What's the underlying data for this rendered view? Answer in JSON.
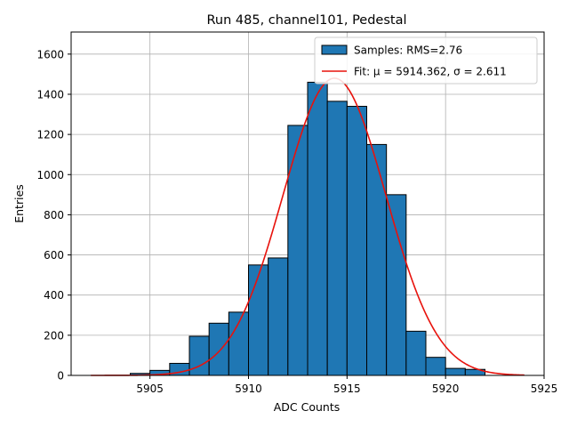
{
  "chart_data": {
    "type": "bar",
    "title": "Run 485, channel101, Pedestal",
    "xlabel": "ADC Counts",
    "ylabel": "Entries",
    "xlim": [
      5901,
      5925
    ],
    "ylim": [
      0,
      1710
    ],
    "xticks": [
      5905,
      5910,
      5915,
      5920,
      5925
    ],
    "yticks": [
      0,
      200,
      400,
      600,
      800,
      1000,
      1200,
      1400,
      1600
    ],
    "grid": true,
    "legend_position": "top-right",
    "bin_width": 1,
    "bins": [
      {
        "x": 5904,
        "value": 10
      },
      {
        "x": 5905,
        "value": 25
      },
      {
        "x": 5906,
        "value": 60
      },
      {
        "x": 5907,
        "value": 195
      },
      {
        "x": 5908,
        "value": 260
      },
      {
        "x": 5909,
        "value": 315
      },
      {
        "x": 5910,
        "value": 550
      },
      {
        "x": 5911,
        "value": 585
      },
      {
        "x": 5912,
        "value": 1245
      },
      {
        "x": 5913,
        "value": 1460
      },
      {
        "x": 5914,
        "value": 1365
      },
      {
        "x": 5915,
        "value": 1340
      },
      {
        "x": 5916,
        "value": 1150
      },
      {
        "x": 5917,
        "value": 900
      },
      {
        "x": 5918,
        "value": 220
      },
      {
        "x": 5919,
        "value": 90
      },
      {
        "x": 5920,
        "value": 35
      },
      {
        "x": 5921,
        "value": 30
      }
    ],
    "fit": {
      "mu": 5914.362,
      "sigma": 2.611,
      "amplitude": 1480,
      "x_start": 5902,
      "x_end": 5924
    },
    "legend": [
      {
        "label": "Samples: RMS=2.76",
        "kind": "patch"
      },
      {
        "label": "Fit: μ = 5914.362, σ = 2.611",
        "kind": "line"
      }
    ],
    "colors": {
      "bar": "#1f77b4",
      "bar_edge": "#000000",
      "fit": "#e8120c",
      "grid": "#b0b0b0"
    }
  }
}
